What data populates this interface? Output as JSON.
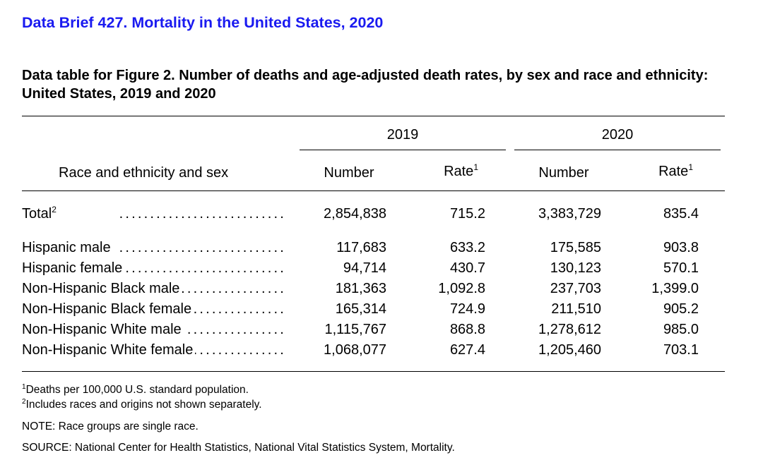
{
  "header": {
    "brief_title": "Data Brief 427. Mortality in the United States, 2020",
    "table_title": "Data table for Figure 2. Number of deaths and age-adjusted death rates, by sex and race and ethnicity: United States, 2019 and 2020"
  },
  "table": {
    "stub_header": "Race and ethnicity and sex",
    "years": [
      "2019",
      "2020"
    ],
    "col_number": "Number",
    "col_rate": "Rate",
    "rate_note_mark": "1",
    "dot_leader": "...........................",
    "total": {
      "label": "Total",
      "note_mark": "2",
      "values": [
        "2,854,838",
        "715.2",
        "3,383,729",
        "835.4"
      ]
    },
    "rows": [
      {
        "label": "Hispanic male",
        "values": [
          "117,683",
          "633.2",
          "175,585",
          "903.8"
        ]
      },
      {
        "label": "Hispanic female",
        "values": [
          "94,714",
          "430.7",
          "130,123",
          "570.1"
        ]
      },
      {
        "label": "Non-Hispanic Black male",
        "values": [
          "181,363",
          "1,092.8",
          "237,703",
          "1,399.0"
        ]
      },
      {
        "label": "Non-Hispanic Black female",
        "values": [
          "165,314",
          "724.9",
          "211,510",
          "905.2"
        ]
      },
      {
        "label": "Non-Hispanic White male",
        "values": [
          "1,115,767",
          "868.8",
          "1,278,612",
          "985.0"
        ]
      },
      {
        "label": "Non-Hispanic White female",
        "values": [
          "1,068,077",
          "627.4",
          "1,205,460",
          "703.1"
        ]
      }
    ]
  },
  "footnotes": {
    "note1_mark": "1",
    "note1": "Deaths per 100,000 U.S. standard population.",
    "note2_mark": "2",
    "note2": "Includes races and origins not shown separately.",
    "note": "NOTE: Race groups are single race.",
    "source": "SOURCE: National Center for Health Statistics, National Vital Statistics System, Mortality."
  }
}
